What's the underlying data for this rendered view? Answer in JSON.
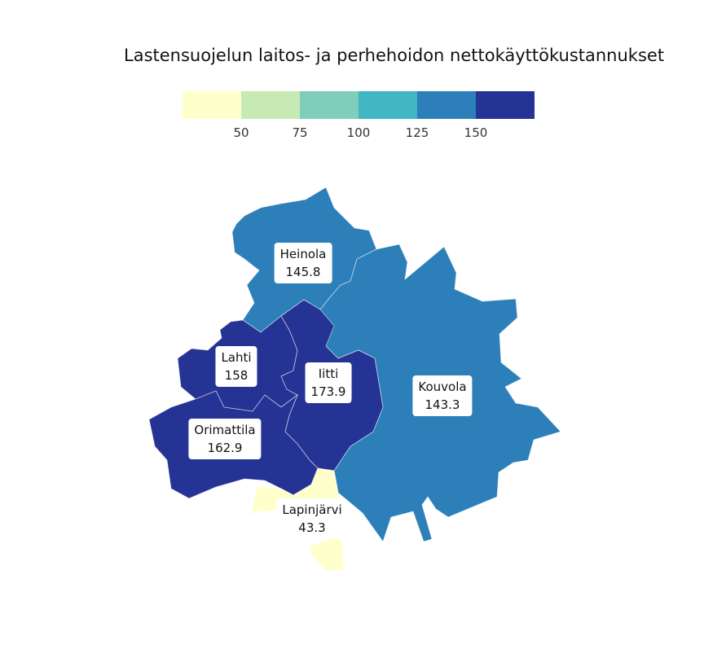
{
  "title": "Lastensuojelun laitos- ja perhehoidon nettokäyttökustannukset",
  "legend": {
    "colors": [
      "#ffffcc",
      "#c7e9b4",
      "#7fcdbb",
      "#41b6c4",
      "#2c7fb8",
      "#253494"
    ],
    "ticks": [
      "50",
      "75",
      "100",
      "125",
      "150"
    ]
  },
  "regions": [
    {
      "name": "Heinola",
      "value": "145.8",
      "color": "#2c7fb8"
    },
    {
      "name": "Lahti",
      "value": "158",
      "color": "#253494"
    },
    {
      "name": "Iitti",
      "value": "173.9",
      "color": "#253494"
    },
    {
      "name": "Kouvola",
      "value": "143.3",
      "color": "#2c7fb8"
    },
    {
      "name": "Orimattila",
      "value": "162.9",
      "color": "#253494"
    },
    {
      "name": "Lapinjärvi",
      "value": "43.3",
      "color": "#ffffcc"
    }
  ]
}
